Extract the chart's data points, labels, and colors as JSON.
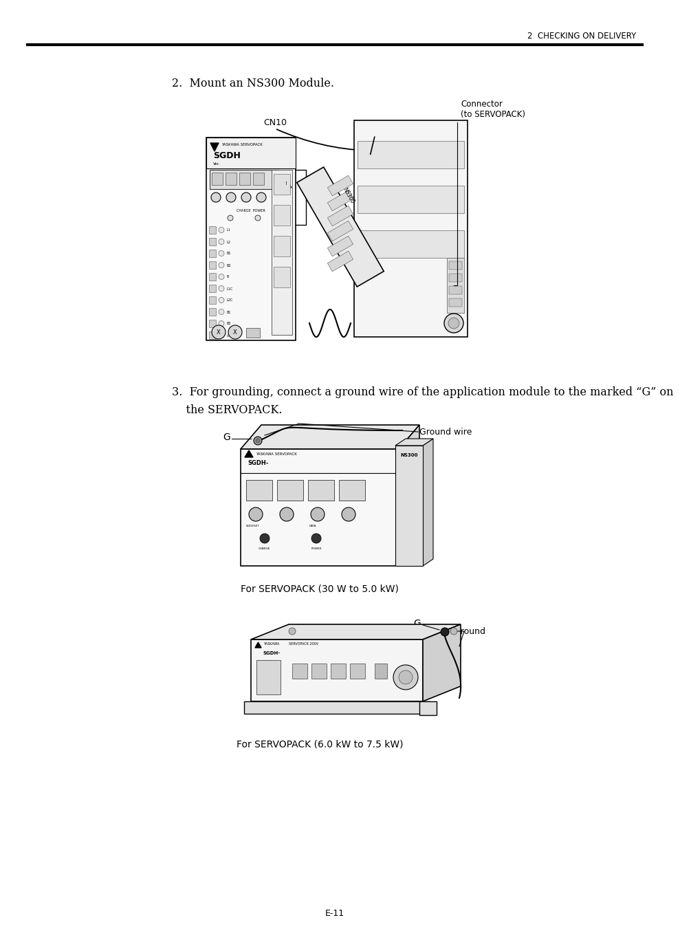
{
  "page_background": "#ffffff",
  "header_text": "2  CHECKING ON DELIVERY",
  "header_line_color": "#000000",
  "footer_text": "E-11",
  "step2_text": "2.  Mount an NS300 Module.",
  "step3_line1": "3.  For grounding, connect a ground wire of the application module to the marked “G” on",
  "step3_line2": "    the SERVOPACK.",
  "label_cn10": "CN10",
  "label_connector_line1": "Connector",
  "label_connector_line2": "(to SERVOPACK)",
  "label_ground_wire": "Ground wire",
  "label_G1": "G",
  "label_G2": "G",
  "label_ground2": "Ground",
  "label_for_servo1": "For SERVOPACK (30 W to 5.0 kW)",
  "label_for_servo2": "For SERVOPACK (6.0 kW to 7.5 kW)",
  "text_color": "#000000",
  "line_color": "#000000",
  "light_gray": "#e8e8e8",
  "mid_gray": "#d0d0d0",
  "dark_gray": "#aaaaaa"
}
